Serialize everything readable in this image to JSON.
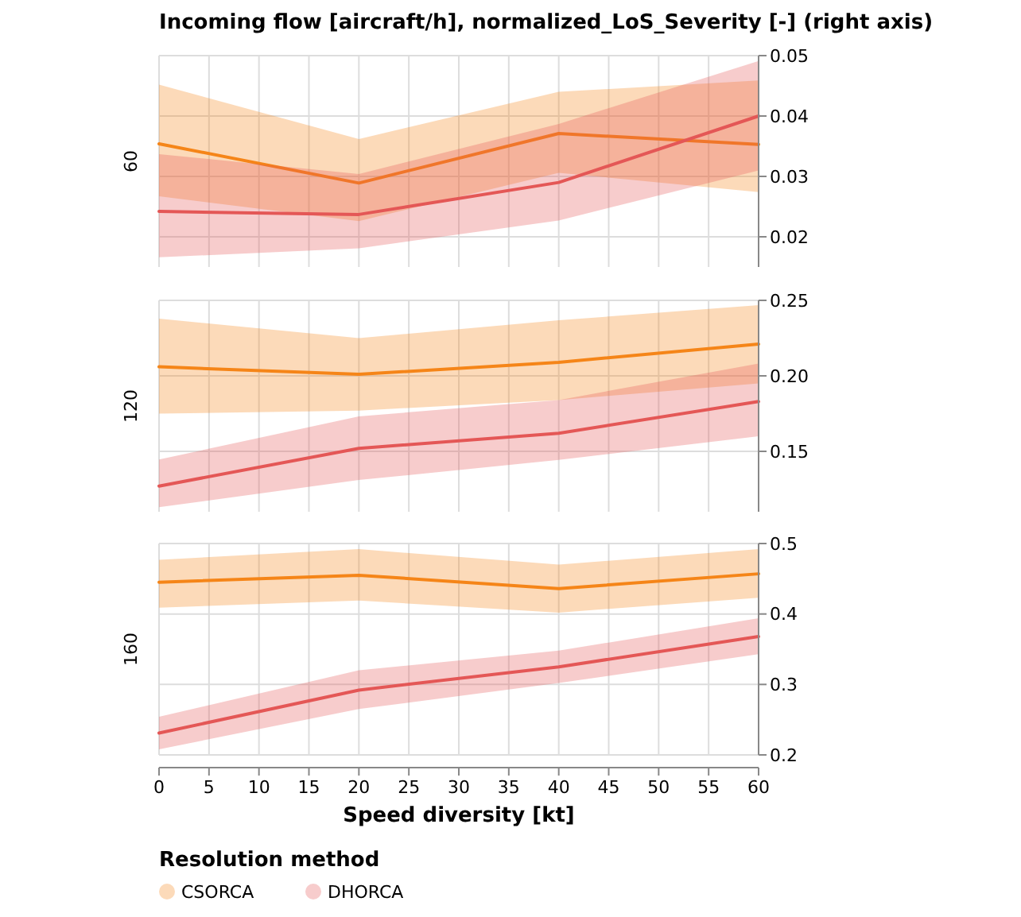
{
  "chart_data": [
    {
      "type": "line",
      "title": "Incoming flow [aircraft/h], normalized_LoS_Severity [-] (right axis)",
      "ylabel": "60",
      "x": [
        0,
        20,
        40,
        60
      ],
      "xlim": [
        0,
        60
      ],
      "xticks": [
        0,
        5,
        10,
        15,
        20,
        25,
        30,
        35,
        40,
        45,
        50,
        55,
        60
      ],
      "ylim": [
        0.015,
        0.05
      ],
      "yticks": [
        0.02,
        0.03,
        0.04,
        0.05
      ],
      "grid": true,
      "tick_labels": "y",
      "series": [
        {
          "color": "#f58518",
          "values": [
            0.0354,
            0.0289,
            0.0371,
            0.0353
          ],
          "lower": [
            0.0267,
            0.0226,
            0.0306,
            0.0274
          ],
          "upper": [
            0.0452,
            0.0362,
            0.044,
            0.0459
          ]
        },
        {
          "color": "#e45756",
          "values": [
            0.0242,
            0.0237,
            0.029,
            0.04
          ],
          "lower": [
            0.0166,
            0.0181,
            0.0227,
            0.031
          ],
          "upper": [
            0.0337,
            0.0304,
            0.0387,
            0.0491
          ]
        }
      ]
    },
    {
      "type": "line",
      "ylabel": "120",
      "x": [
        0,
        20,
        40,
        60
      ],
      "xlim": [
        0,
        60
      ],
      "xticks": [
        0,
        5,
        10,
        15,
        20,
        25,
        30,
        35,
        40,
        45,
        50,
        55,
        60
      ],
      "ylim": [
        0.11,
        0.25
      ],
      "yticks": [
        0.15,
        {
          "value": 0.2,
          "label": "0.20"
        },
        0.25
      ],
      "grid": true,
      "tick_labels": "y",
      "series": [
        {
          "color": "#f58518",
          "values": [
            0.206,
            0.201,
            0.209,
            0.221
          ],
          "lower": [
            0.175,
            0.177,
            0.184,
            0.195
          ],
          "upper": [
            0.2379,
            0.225,
            0.2368,
            0.2468
          ]
        },
        {
          "color": "#e45756",
          "values": [
            0.127,
            0.152,
            0.162,
            0.183
          ],
          "lower": [
            0.113,
            0.131,
            0.1443,
            0.16
          ],
          "upper": [
            0.1446,
            0.1732,
            0.184,
            0.2082
          ]
        }
      ]
    },
    {
      "type": "line",
      "ylabel": "160",
      "xlabel": "Speed diversity [kt]",
      "x": [
        0,
        20,
        40,
        60
      ],
      "xlim": [
        0,
        60
      ],
      "xticks": [
        0,
        5,
        10,
        15,
        20,
        25,
        30,
        35,
        40,
        45,
        50,
        55,
        60
      ],
      "ylim": [
        0.2,
        0.5
      ],
      "yticks": [
        0.2,
        0.3,
        0.4,
        0.5
      ],
      "grid": true,
      "legend": "bottom",
      "legend_title": "Resolution method",
      "series": [
        {
          "name": "CSORCA",
          "color": "#f58518",
          "values": [
            0.445,
            0.455,
            0.436,
            0.457
          ],
          "lower": [
            0.409,
            0.419,
            0.402,
            0.423
          ],
          "upper": [
            0.477,
            0.492,
            0.47,
            0.492
          ]
        },
        {
          "name": "DHORCA",
          "color": "#e45756",
          "values": [
            0.231,
            0.292,
            0.325,
            0.368
          ],
          "lower": [
            0.208,
            0.265,
            0.302,
            0.343
          ],
          "upper": [
            0.254,
            0.32,
            0.348,
            0.394
          ]
        }
      ]
    }
  ]
}
